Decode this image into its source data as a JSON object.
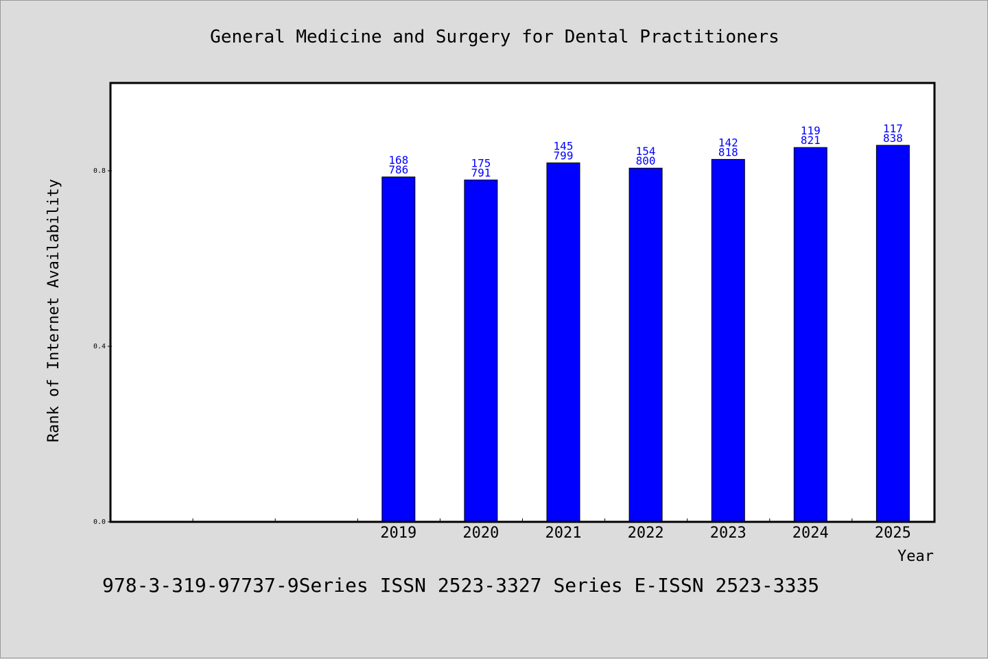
{
  "chart_data": {
    "type": "bar",
    "title": "General Medicine and Surgery for Dental Practitioners",
    "xlabel": "Year",
    "ylabel": "Rank of Internet Availability",
    "categories": [
      "2019",
      "2020",
      "2021",
      "2022",
      "2023",
      "2024",
      "2025"
    ],
    "slots_before_first_category": 3,
    "values": [
      0.786,
      0.779,
      0.818,
      0.806,
      0.826,
      0.853,
      0.858
    ],
    "labels_top": [
      "168",
      "175",
      "145",
      "154",
      "142",
      "119",
      "117"
    ],
    "labels_bottom": [
      "786",
      "791",
      "799",
      "800",
      "818",
      "821",
      "838"
    ],
    "ylim": [
      0.0,
      0.8
    ],
    "yticks": [
      "0.0",
      "0.4",
      "0.8"
    ],
    "ytick_values": [
      0.0,
      0.4,
      0.8
    ],
    "grid": false,
    "legend": "none",
    "bar_color": "#0000ff",
    "label_color": "#0000ff"
  },
  "footer": "978-3-319-97737-9Series ISSN 2523-3327 Series E-ISSN 2523-3335"
}
